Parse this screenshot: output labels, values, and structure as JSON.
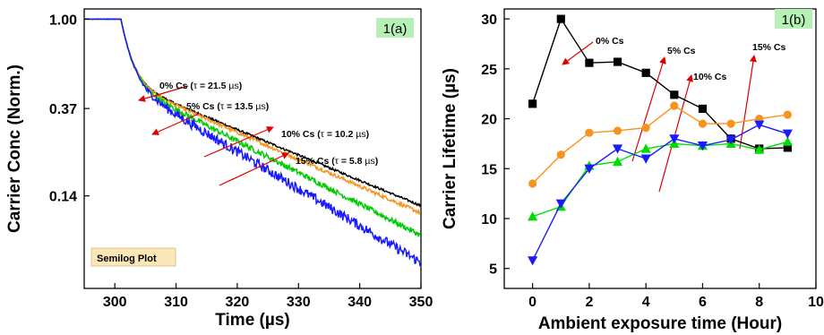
{
  "chart_data": [
    {
      "type": "line",
      "panel": "1(a)",
      "xlabel": "Time (µs)",
      "ylabel": "Carrier Conc (Norm.)",
      "xlim": [
        295,
        350
      ],
      "ylim": [
        0.05,
        1.12
      ],
      "yscale": "log",
      "xticks": [
        300,
        310,
        320,
        330,
        340,
        350
      ],
      "ytick_labels": [
        "1.00",
        "0.37",
        "0.14"
      ],
      "yticks": [
        1.0,
        0.37,
        0.14
      ],
      "badge": "Semilog Plot",
      "series": [
        {
          "name": "0% Cs",
          "tau": 21.5,
          "end_value": 0.128,
          "color": "#000000"
        },
        {
          "name": "5% Cs",
          "tau": 13.5,
          "end_value": 0.118,
          "color": "#f7941d"
        },
        {
          "name": "10% Cs",
          "tau": 10.2,
          "end_value": 0.092,
          "color": "#00cc00"
        },
        {
          "name": "15% Cs",
          "tau": 5.8,
          "end_value": 0.068,
          "color": "#1a1aff"
        }
      ],
      "annotations": [
        {
          "parts": [
            "0% Cs (",
            "τ",
            " = 21.5 ",
            "µs",
            ")"
          ]
        },
        {
          "parts": [
            "5% Cs (",
            "τ",
            " = 13.5 ",
            "µs",
            ")"
          ]
        },
        {
          "parts": [
            "10% Cs (",
            "τ",
            " = 10.2 ",
            "µs",
            ")"
          ]
        },
        {
          "parts": [
            "15% Cs (",
            "τ",
            " = 5.8 ",
            "µs",
            ")"
          ]
        }
      ],
      "grid": false
    },
    {
      "type": "line",
      "panel": "1(b)",
      "xlabel": "Ambient exposure time (Hour)",
      "ylabel": "Carrier Lifetime (µs)",
      "xlim": [
        -1,
        10
      ],
      "ylim": [
        3,
        31
      ],
      "xticks": [
        0,
        2,
        4,
        6,
        8,
        10
      ],
      "yticks": [
        5,
        10,
        15,
        20,
        25,
        30
      ],
      "x": [
        0,
        1,
        2,
        3,
        4,
        5,
        6,
        7,
        8,
        9
      ],
      "series": [
        {
          "name": "0% Cs",
          "marker": "square",
          "color": "#000000",
          "values": [
            21.5,
            30.0,
            25.6,
            25.7,
            24.6,
            22.4,
            21.0,
            18.0,
            17.0,
            17.1
          ]
        },
        {
          "name": "5% Cs",
          "marker": "circle",
          "color": "#f7941d",
          "values": [
            13.5,
            16.4,
            18.6,
            18.8,
            19.1,
            21.3,
            19.5,
            19.5,
            20.0,
            20.4
          ]
        },
        {
          "name": "10% Cs",
          "marker": "triangle-up",
          "color": "#00dd00",
          "values": [
            10.2,
            11.2,
            15.3,
            15.7,
            17.0,
            17.5,
            17.3,
            17.5,
            16.9,
            17.7
          ]
        },
        {
          "name": "15% Cs",
          "marker": "triangle-down",
          "color": "#1a1aff",
          "values": [
            5.8,
            11.5,
            15.0,
            17.0,
            16.0,
            18.0,
            17.3,
            17.9,
            19.4,
            18.5
          ]
        }
      ],
      "labels": [
        "0% Cs",
        "5% Cs",
        "10% Cs",
        "15% Cs"
      ],
      "grid": false
    }
  ]
}
